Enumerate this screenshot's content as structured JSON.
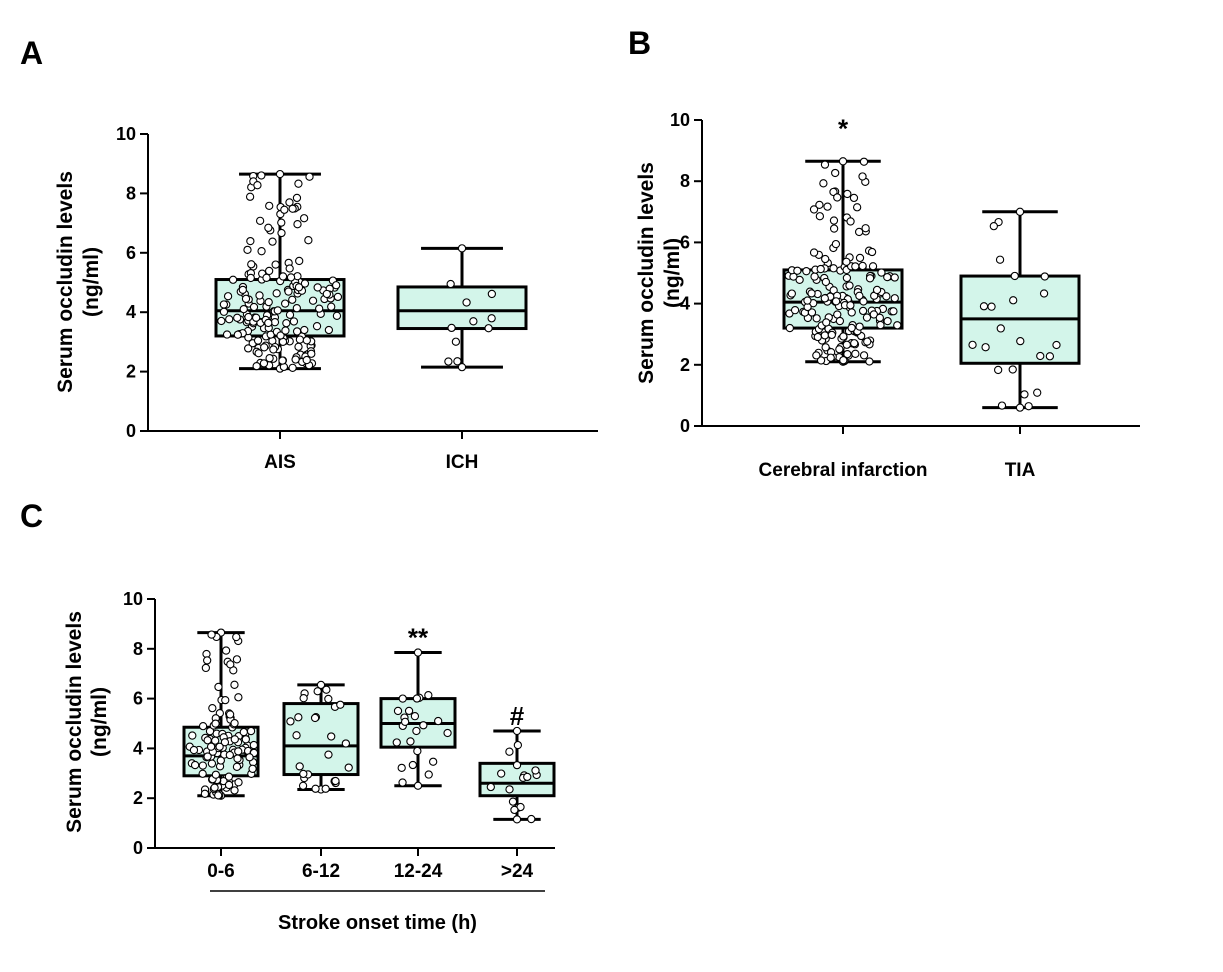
{
  "chart_data": [
    {
      "panel": "A",
      "type": "box",
      "ylabel_line1": "Serum occludin levels",
      "ylabel_line2": "(ng/ml)",
      "ylim": [
        0,
        10
      ],
      "yticks": [
        "0",
        "2",
        "4",
        "6",
        "8",
        "10"
      ],
      "categories": [
        "AIS",
        "ICH"
      ],
      "boxes": [
        {
          "min": 2.1,
          "q1": 3.2,
          "median": 4.05,
          "q3": 5.1,
          "max": 8.65,
          "n": 190,
          "sig": ""
        },
        {
          "min": 2.15,
          "q1": 3.45,
          "median": 4.05,
          "q3": 4.85,
          "max": 6.15,
          "n": 12,
          "sig": ""
        }
      ],
      "xlabel": "",
      "colors": {
        "box_fill": "#d3f5ea",
        "line": "#000000"
      }
    },
    {
      "panel": "B",
      "type": "box",
      "ylabel_line1": "Serum occludin levels",
      "ylabel_line2": "(ng/ml)",
      "ylim": [
        0,
        10
      ],
      "yticks": [
        "0",
        "2",
        "4",
        "6",
        "8",
        "10"
      ],
      "categories": [
        "Cerebral infarction",
        "TIA"
      ],
      "boxes": [
        {
          "min": 2.1,
          "q1": 3.2,
          "median": 4.05,
          "q3": 5.1,
          "max": 8.65,
          "n": 190,
          "sig": "*"
        },
        {
          "min": 0.6,
          "q1": 2.05,
          "median": 3.5,
          "q3": 4.9,
          "max": 7.0,
          "n": 24,
          "sig": ""
        }
      ],
      "xlabel": "",
      "colors": {
        "box_fill": "#d3f5ea",
        "line": "#000000"
      }
    },
    {
      "panel": "C",
      "type": "box",
      "ylabel_line1": "Serum occludin levels",
      "ylabel_line2": "(ng/ml)",
      "ylim": [
        0,
        10
      ],
      "yticks": [
        "0",
        "2",
        "4",
        "6",
        "8",
        "10"
      ],
      "categories": [
        "0-6",
        "6-12",
        "12-24",
        ">24"
      ],
      "boxes": [
        {
          "min": 2.1,
          "q1": 2.9,
          "median": 3.7,
          "q3": 4.85,
          "max": 8.65,
          "n": 130,
          "sig": ""
        },
        {
          "min": 2.35,
          "q1": 2.95,
          "median": 4.1,
          "q3": 5.8,
          "max": 6.55,
          "n": 28,
          "sig": ""
        },
        {
          "min": 2.5,
          "q1": 4.05,
          "median": 5.0,
          "q3": 6.0,
          "max": 7.85,
          "n": 24,
          "sig": "**"
        },
        {
          "min": 1.15,
          "q1": 2.1,
          "median": 2.6,
          "q3": 3.4,
          "max": 4.7,
          "n": 18,
          "sig": "#"
        }
      ],
      "xlabel": "Stroke onset time (h)",
      "colors": {
        "box_fill": "#d3f5ea",
        "line": "#000000"
      }
    }
  ]
}
